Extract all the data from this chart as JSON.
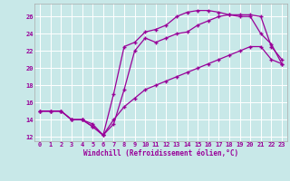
{
  "xlabel": "Windchill (Refroidissement éolien,°C)",
  "bg_color": "#c8e8e8",
  "grid_color": "#ffffff",
  "line_color": "#990099",
  "xlim": [
    -0.5,
    23.5
  ],
  "ylim": [
    11.5,
    27.5
  ],
  "xticks": [
    0,
    1,
    2,
    3,
    4,
    5,
    6,
    7,
    8,
    9,
    10,
    11,
    12,
    13,
    14,
    15,
    16,
    17,
    18,
    19,
    20,
    21,
    22,
    23
  ],
  "yticks": [
    12,
    14,
    16,
    18,
    20,
    22,
    24,
    26
  ],
  "line1_x": [
    0,
    1,
    2,
    3,
    4,
    5,
    6,
    7,
    8,
    9,
    10,
    11,
    12,
    13,
    14,
    15,
    16,
    17,
    18,
    19,
    20,
    21,
    22,
    23
  ],
  "line1_y": [
    15,
    15,
    15,
    14,
    14,
    13.5,
    12.2,
    13.5,
    17.5,
    22,
    23.5,
    23,
    23.5,
    24,
    24.2,
    25,
    25.5,
    26,
    26.2,
    26.2,
    26.2,
    26,
    22.5,
    21
  ],
  "line2_x": [
    0,
    1,
    2,
    3,
    4,
    5,
    6,
    7,
    8,
    9,
    10,
    11,
    12,
    13,
    14,
    15,
    16,
    17,
    18,
    19,
    20,
    21,
    22,
    23
  ],
  "line2_y": [
    15,
    15,
    15,
    14,
    14,
    13.2,
    12.2,
    17,
    22.5,
    23,
    24.2,
    24.5,
    25,
    26,
    26.5,
    26.7,
    26.7,
    26.5,
    26.2,
    26,
    26,
    24,
    22.8,
    20.5
  ],
  "line3_x": [
    0,
    1,
    2,
    3,
    4,
    5,
    6,
    7,
    8,
    9,
    10,
    11,
    12,
    13,
    14,
    15,
    16,
    17,
    18,
    19,
    20,
    21,
    22,
    23
  ],
  "line3_y": [
    15,
    15,
    15,
    14,
    14,
    13.2,
    12.2,
    14,
    15.5,
    16.5,
    17.5,
    18,
    18.5,
    19,
    19.5,
    20,
    20.5,
    21,
    21.5,
    22,
    22.5,
    22.5,
    21,
    20.5
  ]
}
